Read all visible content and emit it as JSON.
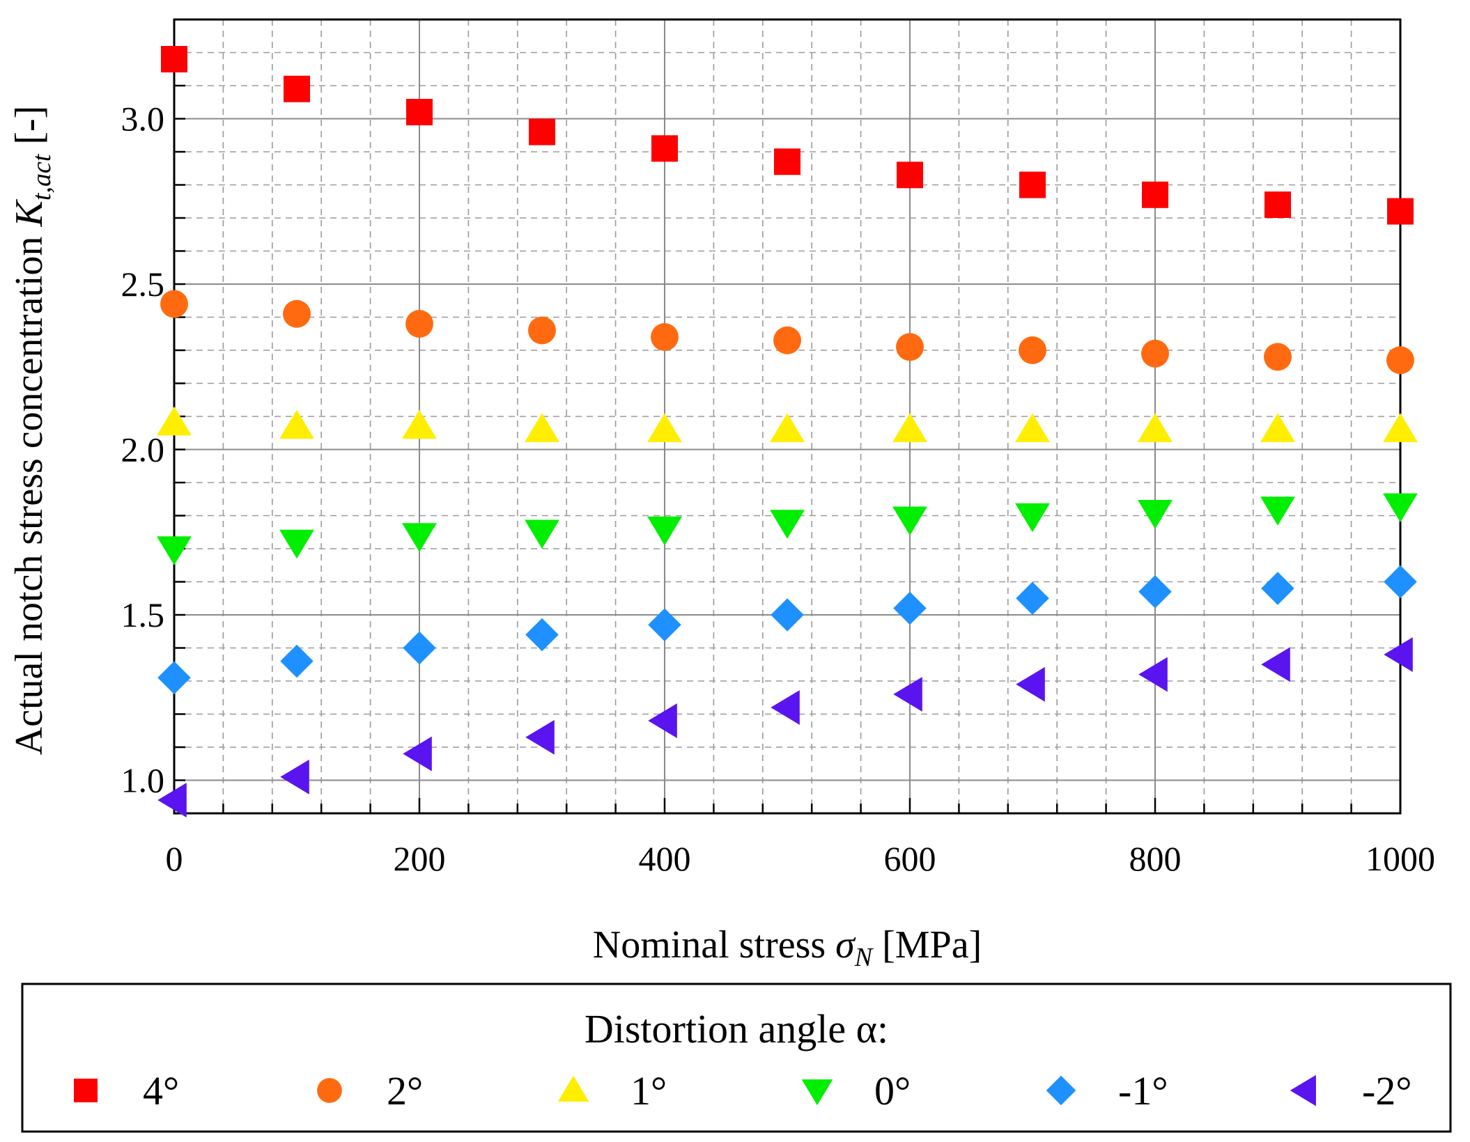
{
  "chart_data": {
    "type": "scatter",
    "xlabel": "Nominal stress",
    "xlabel_symbol": "σ",
    "xlabel_subscript": "N",
    "xlabel_unit": "[MPa]",
    "ylabel": "Actual notch stress concentration",
    "ylabel_symbol": "K",
    "ylabel_subscript": "t,act",
    "ylabel_unit": "[-]",
    "xlim": [
      0,
      1000
    ],
    "ylim": [
      0.9,
      3.3
    ],
    "xticks": [
      0,
      200,
      400,
      600,
      800,
      1000
    ],
    "xtick_labels": [
      "0",
      "200",
      "400",
      "600",
      "800",
      "1000"
    ],
    "yticks": [
      1.0,
      1.5,
      2.0,
      2.5,
      3.0
    ],
    "ytick_labels": [
      "1.0",
      "1.5",
      "2.0",
      "2.5",
      "3.0"
    ],
    "grid": true,
    "legend_title": "Distortion angle α:",
    "legend_position": "bottom",
    "x": [
      0,
      100,
      200,
      300,
      400,
      500,
      600,
      700,
      800,
      900,
      1000
    ],
    "series": [
      {
        "name": "4°",
        "marker": "square",
        "color": "#ff0000",
        "values": [
          3.18,
          3.09,
          3.02,
          2.96,
          2.91,
          2.87,
          2.83,
          2.8,
          2.77,
          2.74,
          2.72
        ]
      },
      {
        "name": "2°",
        "marker": "circle",
        "color": "#ff6a10",
        "values": [
          2.44,
          2.41,
          2.38,
          2.36,
          2.34,
          2.33,
          2.31,
          2.3,
          2.29,
          2.28,
          2.27
        ]
      },
      {
        "name": "1°",
        "marker": "triangle-up",
        "color": "#ffee00",
        "values": [
          2.08,
          2.07,
          2.07,
          2.06,
          2.06,
          2.06,
          2.06,
          2.06,
          2.06,
          2.06,
          2.06
        ]
      },
      {
        "name": "0°",
        "marker": "triangle-down",
        "color": "#00ee00",
        "values": [
          1.7,
          1.72,
          1.74,
          1.75,
          1.76,
          1.78,
          1.79,
          1.8,
          1.81,
          1.82,
          1.83
        ]
      },
      {
        "name": "-1°",
        "marker": "diamond",
        "color": "#1e90ff",
        "values": [
          1.31,
          1.36,
          1.4,
          1.44,
          1.47,
          1.5,
          1.52,
          1.55,
          1.57,
          1.58,
          1.6
        ]
      },
      {
        "name": "-2°",
        "marker": "triangle-left",
        "color": "#5a14f0",
        "values": [
          0.94,
          1.01,
          1.08,
          1.13,
          1.18,
          1.22,
          1.26,
          1.29,
          1.32,
          1.35,
          1.38
        ]
      }
    ]
  }
}
